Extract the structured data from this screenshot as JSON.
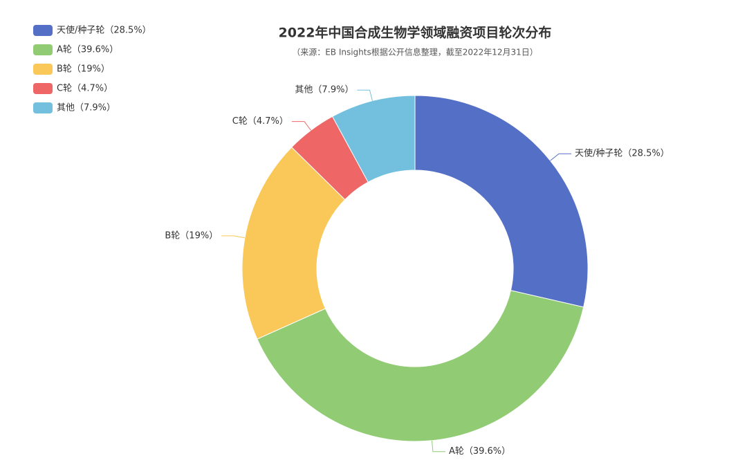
{
  "chart_data": {
    "type": "donut",
    "title": "2022年中国合成生物学领域融资项目轮次分布",
    "subtitle": "（来源：EB Insights根据公开信息整理，截至2022年12月31日）",
    "categories": [
      "天使/种子轮（28.5%）",
      "A轮（39.6%）",
      "B轮（19%）",
      "C轮（4.7%）",
      "其他（7.9%）"
    ],
    "values": [
      28.5,
      39.6,
      19,
      4.7,
      7.9
    ],
    "colors": [
      "#5470c6",
      "#91cc75",
      "#fac858",
      "#ee6666",
      "#73c0de"
    ],
    "legend": "top-left"
  }
}
